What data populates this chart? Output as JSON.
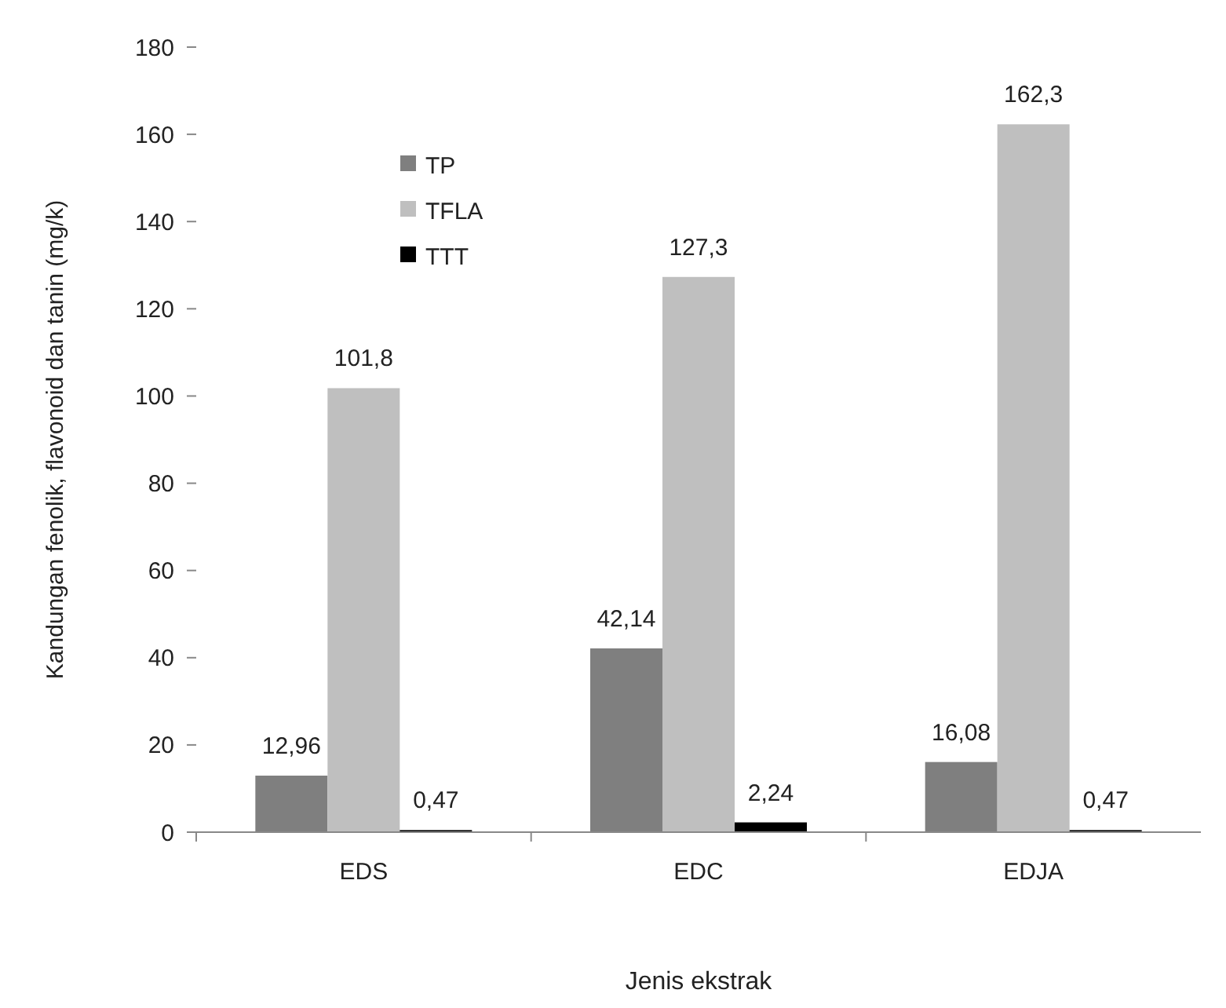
{
  "chart_data": {
    "type": "bar",
    "xlabel": "Jenis ekstrak",
    "ylabel": "Kandungan fenolik, flavonoid dan tanin (mg/k)",
    "categories": [
      "EDS",
      "EDC",
      "EDJA"
    ],
    "series": [
      {
        "name": "TP",
        "color": "#7f7f7f",
        "values": [
          12.96,
          42.14,
          16.08
        ],
        "value_labels": [
          "12,96",
          "42,14",
          "16,08"
        ]
      },
      {
        "name": "TFLA",
        "color": "#bfbfbf",
        "values": [
          101.8,
          127.3,
          162.3
        ],
        "value_labels": [
          "101,8",
          "127,3",
          "162,3"
        ]
      },
      {
        "name": "TTT",
        "color": "#000000",
        "values": [
          0.47,
          2.24,
          0.47
        ],
        "value_labels": [
          "0,47",
          "2,24",
          "0,47"
        ]
      }
    ],
    "ylim": [
      0,
      180
    ],
    "yticks": [
      0,
      20,
      40,
      60,
      80,
      100,
      120,
      140,
      160,
      180
    ],
    "legend": "top left"
  }
}
